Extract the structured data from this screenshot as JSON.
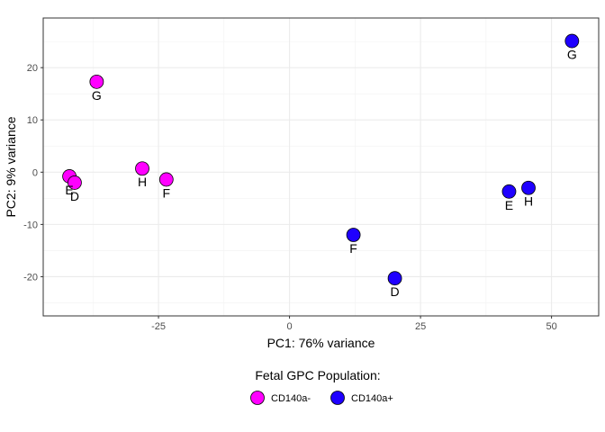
{
  "chart_data": {
    "type": "scatter",
    "xlabel": "PC1: 76% variance",
    "ylabel": "PC2: 9% variance",
    "xlim": [
      -47,
      59
    ],
    "ylim": [
      -27.5,
      29.5
    ],
    "x_ticks": [
      -25,
      0,
      25,
      50
    ],
    "x_tick_labels": [
      "-25",
      "0",
      "25",
      "50"
    ],
    "y_ticks": [
      -20,
      -10,
      0,
      10,
      20
    ],
    "y_tick_labels": [
      "-20",
      "-10",
      "0",
      "10",
      "20"
    ],
    "grid": true,
    "legend": {
      "title": "Fetal GPC Population:",
      "placement": "bottom"
    },
    "series": [
      {
        "name": "CD140a-",
        "color": "#FF00FF",
        "points": [
          {
            "x": -36.8,
            "y": 17.3,
            "label": "G"
          },
          {
            "x": -28.1,
            "y": 0.7,
            "label": "H"
          },
          {
            "x": -23.5,
            "y": -1.4,
            "label": "F"
          },
          {
            "x": -42.0,
            "y": -0.8,
            "label": "E"
          },
          {
            "x": -41.0,
            "y": -2.0,
            "label": "D"
          }
        ]
      },
      {
        "name": "CD140a+",
        "color": "#1F00FF",
        "points": [
          {
            "x": 53.9,
            "y": 25.1,
            "label": "G"
          },
          {
            "x": 45.6,
            "y": -3.0,
            "label": "H"
          },
          {
            "x": 41.9,
            "y": -3.7,
            "label": "E"
          },
          {
            "x": 12.2,
            "y": -12.0,
            "label": "F"
          },
          {
            "x": 20.1,
            "y": -20.3,
            "label": "D"
          }
        ]
      }
    ]
  }
}
